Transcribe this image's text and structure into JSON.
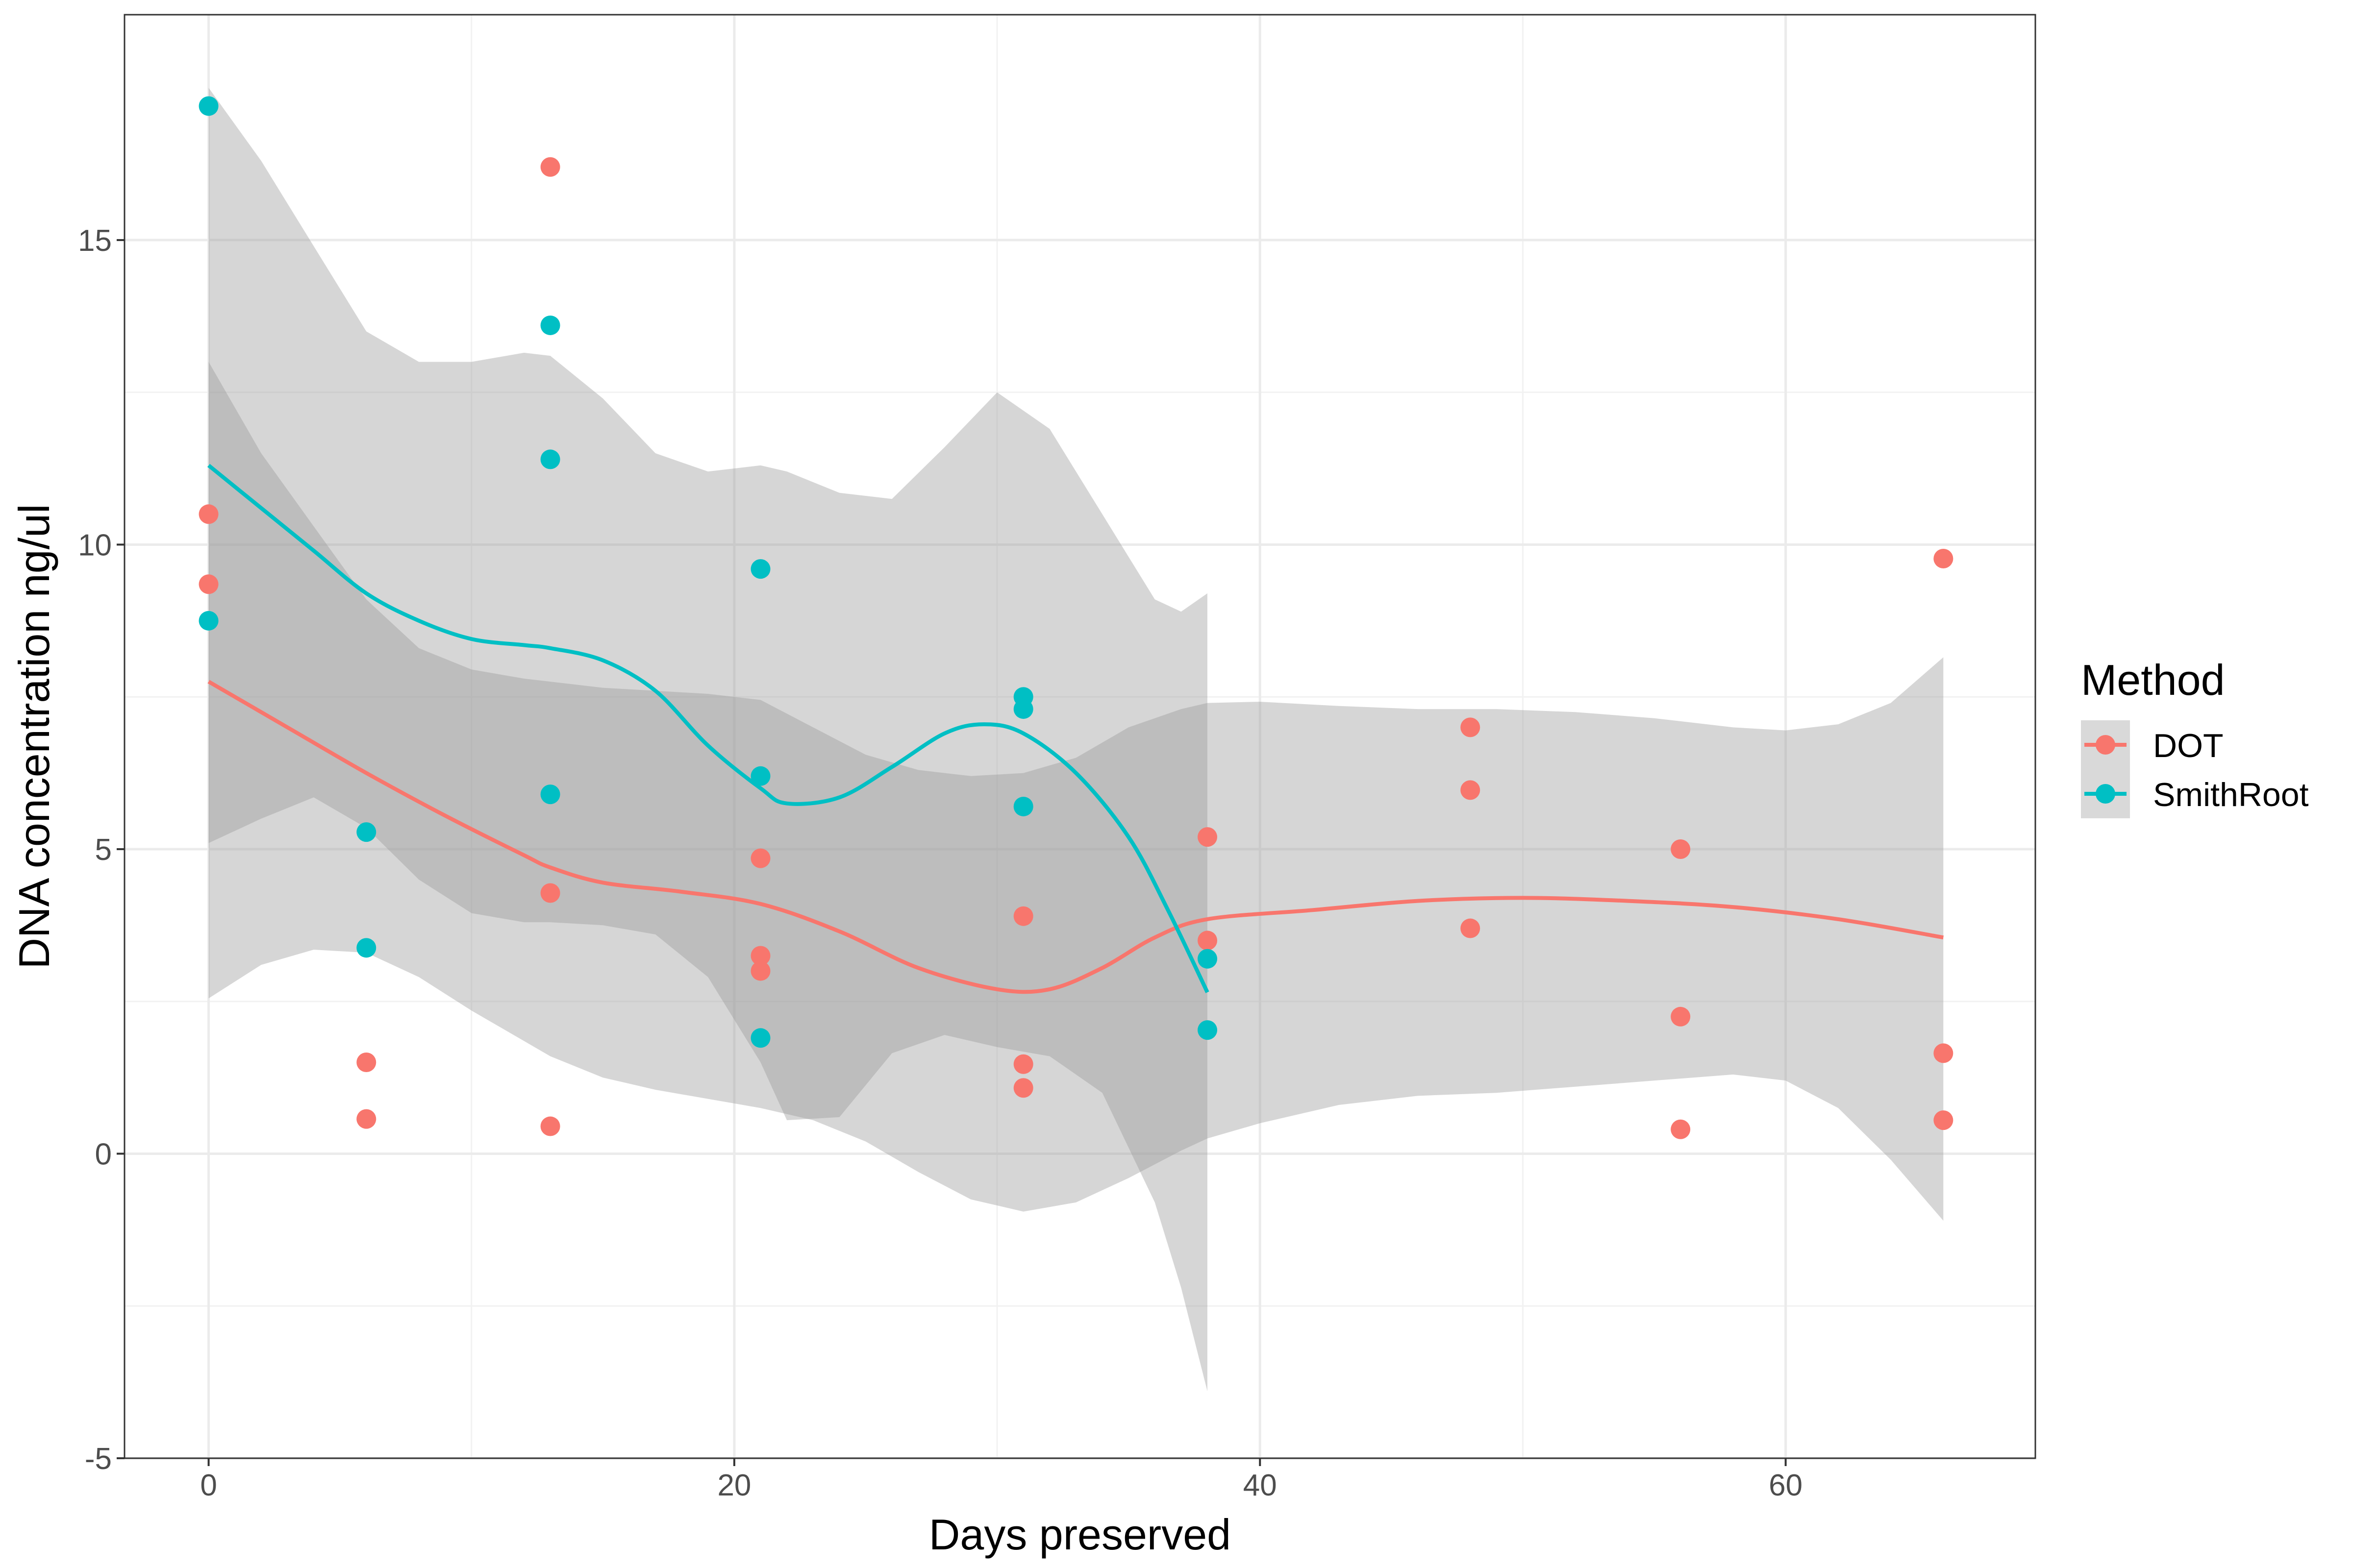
{
  "chart_data": {
    "type": "scatter",
    "xlabel": "Days preserved",
    "ylabel": "DNA concentration ng/ul",
    "xlim": [
      -3.2,
      69.5
    ],
    "ylim": [
      -5,
      18.7
    ],
    "x_ticks": [
      0,
      20,
      40,
      60
    ],
    "y_ticks": [
      -5,
      0,
      5,
      10,
      15
    ],
    "y_tick_labels": [
      "-5",
      "0",
      "5",
      "10",
      "15"
    ],
    "x_tick_labels": [
      "0",
      "20",
      "40",
      "60"
    ],
    "grid": true,
    "legend": {
      "title": "Method",
      "placement": "right"
    },
    "series": [
      {
        "name": "DOT",
        "color": "#F8766D",
        "points": [
          [
            0,
            10.5
          ],
          [
            0,
            9.35
          ],
          [
            6,
            1.5
          ],
          [
            6,
            0.57
          ],
          [
            13,
            16.2
          ],
          [
            13,
            4.28
          ],
          [
            13,
            0.45
          ],
          [
            21,
            4.85
          ],
          [
            21,
            3.25
          ],
          [
            21,
            3.0
          ],
          [
            31,
            3.9
          ],
          [
            31,
            1.47
          ],
          [
            31,
            1.08
          ],
          [
            38,
            5.2
          ],
          [
            38,
            3.5
          ],
          [
            48,
            7.0
          ],
          [
            48,
            5.97
          ],
          [
            48,
            3.7
          ],
          [
            56,
            5.0
          ],
          [
            56,
            2.25
          ],
          [
            56,
            0.4
          ],
          [
            66,
            9.77
          ],
          [
            66,
            1.65
          ],
          [
            66,
            0.55
          ]
        ],
        "smooth": [
          [
            0,
            7.75
          ],
          [
            3,
            7.0
          ],
          [
            6,
            6.25
          ],
          [
            9,
            5.55
          ],
          [
            12,
            4.9
          ],
          [
            13,
            4.7
          ],
          [
            15,
            4.45
          ],
          [
            18,
            4.3
          ],
          [
            21,
            4.1
          ],
          [
            24,
            3.65
          ],
          [
            27,
            3.05
          ],
          [
            30,
            2.7
          ],
          [
            32,
            2.7
          ],
          [
            34,
            3.05
          ],
          [
            36,
            3.55
          ],
          [
            38,
            3.85
          ],
          [
            42,
            4.0
          ],
          [
            46,
            4.15
          ],
          [
            50,
            4.2
          ],
          [
            54,
            4.15
          ],
          [
            58,
            4.05
          ],
          [
            62,
            3.85
          ],
          [
            66,
            3.55
          ]
        ],
        "band": [
          [
            0,
            2.55,
            13.0
          ],
          [
            2,
            3.1,
            11.5
          ],
          [
            4,
            3.35,
            10.3
          ],
          [
            6,
            3.3,
            9.1
          ],
          [
            8,
            2.9,
            8.3
          ],
          [
            10,
            2.35,
            7.95
          ],
          [
            12,
            1.85,
            7.8
          ],
          [
            13,
            1.6,
            7.75
          ],
          [
            15,
            1.25,
            7.65
          ],
          [
            17,
            1.05,
            7.6
          ],
          [
            19,
            0.9,
            7.55
          ],
          [
            21,
            0.75,
            7.45
          ],
          [
            23,
            0.55,
            7.0
          ],
          [
            25,
            0.2,
            6.55
          ],
          [
            27,
            -0.3,
            6.3
          ],
          [
            29,
            -0.75,
            6.2
          ],
          [
            31,
            -0.95,
            6.25
          ],
          [
            33,
            -0.8,
            6.5
          ],
          [
            35,
            -0.4,
            7.0
          ],
          [
            37,
            0.05,
            7.3
          ],
          [
            38,
            0.25,
            7.4
          ],
          [
            40,
            0.5,
            7.42
          ],
          [
            43,
            0.8,
            7.35
          ],
          [
            46,
            0.95,
            7.3
          ],
          [
            49,
            1.0,
            7.3
          ],
          [
            52,
            1.1,
            7.25
          ],
          [
            55,
            1.2,
            7.15
          ],
          [
            58,
            1.3,
            7.0
          ],
          [
            60,
            1.2,
            6.95
          ],
          [
            62,
            0.75,
            7.05
          ],
          [
            64,
            -0.1,
            7.4
          ],
          [
            66,
            -1.1,
            8.15
          ]
        ]
      },
      {
        "name": "SmithRoot",
        "color": "#00BFC4",
        "points": [
          [
            0,
            17.2
          ],
          [
            0,
            8.75
          ],
          [
            6,
            5.28
          ],
          [
            6,
            3.38
          ],
          [
            13,
            13.6
          ],
          [
            13,
            11.4
          ],
          [
            13,
            5.9
          ],
          [
            21,
            9.6
          ],
          [
            21,
            6.2
          ],
          [
            21,
            1.9
          ],
          [
            31,
            7.5
          ],
          [
            31,
            7.3
          ],
          [
            31,
            5.7
          ],
          [
            38,
            3.2
          ],
          [
            38,
            2.03
          ]
        ],
        "smooth": [
          [
            0,
            11.3
          ],
          [
            2,
            10.6
          ],
          [
            4,
            9.9
          ],
          [
            6,
            9.2
          ],
          [
            8,
            8.75
          ],
          [
            10,
            8.45
          ],
          [
            12,
            8.35
          ],
          [
            13,
            8.3
          ],
          [
            15,
            8.1
          ],
          [
            17,
            7.6
          ],
          [
            19,
            6.7
          ],
          [
            21,
            6.0
          ],
          [
            22,
            5.75
          ],
          [
            24,
            5.85
          ],
          [
            26,
            6.35
          ],
          [
            28,
            6.9
          ],
          [
            29.5,
            7.05
          ],
          [
            31,
            6.9
          ],
          [
            33,
            6.25
          ],
          [
            35,
            5.2
          ],
          [
            36.5,
            4.0
          ],
          [
            38,
            2.65
          ]
        ],
        "band": [
          [
            0,
            5.1,
            17.5
          ],
          [
            2,
            5.5,
            16.3
          ],
          [
            4,
            5.85,
            14.9
          ],
          [
            6,
            5.35,
            13.5
          ],
          [
            8,
            4.5,
            13.0
          ],
          [
            10,
            3.95,
            13.0
          ],
          [
            12,
            3.8,
            13.15
          ],
          [
            13,
            3.8,
            13.1
          ],
          [
            15,
            3.75,
            12.4
          ],
          [
            17,
            3.6,
            11.5
          ],
          [
            19,
            2.9,
            11.2
          ],
          [
            21,
            1.5,
            11.3
          ],
          [
            22,
            0.55,
            11.2
          ],
          [
            24,
            0.6,
            10.85
          ],
          [
            26,
            1.65,
            10.75
          ],
          [
            28,
            1.95,
            11.6
          ],
          [
            30,
            1.75,
            12.5
          ],
          [
            32,
            1.6,
            11.9
          ],
          [
            34,
            1.0,
            10.5
          ],
          [
            36,
            -0.8,
            9.1
          ],
          [
            37,
            -2.2,
            8.9
          ],
          [
            38,
            -3.9,
            9.2
          ]
        ]
      }
    ]
  }
}
